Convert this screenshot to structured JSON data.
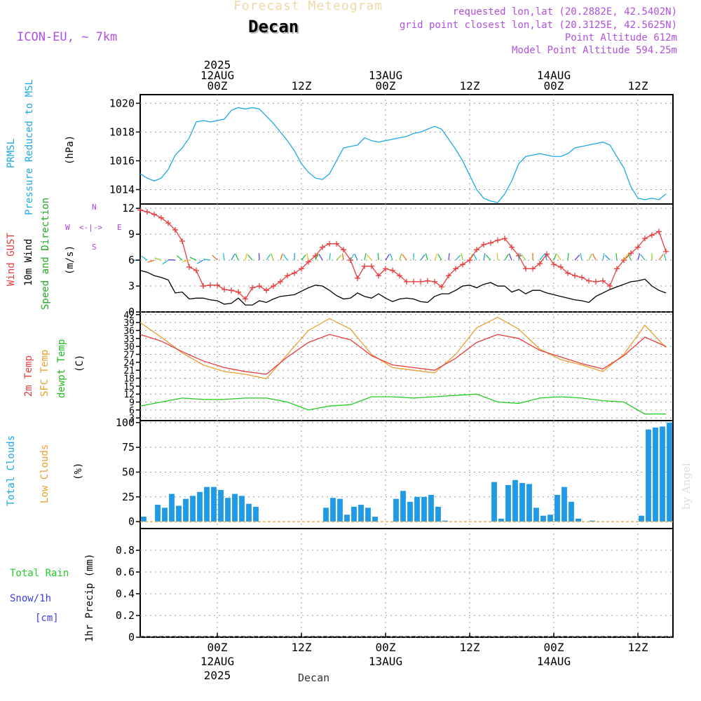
{
  "header": {
    "faded_title": "Forecast Meteogram",
    "location": "Decan",
    "model": "ICON-EU, ~ 7km",
    "requested": "requested lon,lat (20.2882E, 42.5402N)",
    "grid_point": "grid point closest lon,lat (20.3125E, 42.5625N)",
    "point_altitude": "Point Altitude 612m",
    "model_altitude": "Model Point Altitude 594.25m",
    "watermark": "by Angel",
    "footer_location": "Decan"
  },
  "colors": {
    "pressure": "#1ea8e8",
    "wind_gust": "#e83c3c",
    "wind": "#000000",
    "direction": "#22aa22",
    "temp_2m": "#e83c3c",
    "temp_sfc": "#e8a030",
    "dewpoint": "#22cc22",
    "total_clouds": "#1e9be8",
    "low_clouds": "#e8a030",
    "rain": "#22cc22",
    "snow": "#3c3ce8",
    "compass": "#b040e0"
  },
  "time_axis": {
    "ticks": [
      {
        "h": 0,
        "top": [
          "2025",
          "12AUG",
          "00Z"
        ],
        "bottom": [
          "00Z",
          "12AUG",
          "2025"
        ]
      },
      {
        "h": 12,
        "top": [
          "12Z"
        ],
        "bottom": [
          "12Z"
        ]
      },
      {
        "h": 24,
        "top": [
          "13AUG",
          "00Z"
        ],
        "bottom": [
          "00Z",
          "13AUG"
        ]
      },
      {
        "h": 36,
        "top": [
          "12Z"
        ],
        "bottom": [
          "12Z"
        ]
      },
      {
        "h": 48,
        "top": [
          "14AUG",
          "00Z"
        ],
        "bottom": [
          "00Z",
          "14AUG"
        ]
      },
      {
        "h": 60,
        "top": [
          "12Z"
        ],
        "bottom": [
          "12Z"
        ]
      }
    ],
    "start_hour": -11,
    "end_hour": 65
  },
  "panels": {
    "pressure": {
      "labels": [
        "PRMSL",
        "Pressure Reduced to MSL"
      ],
      "unit": "(hPa)",
      "ticks": [
        "1014",
        "1016",
        "1018",
        "1020"
      ]
    },
    "wind": {
      "labels": [
        "Wind GUST",
        "10m Wind",
        "Speed and Direction"
      ],
      "unit": "(m/s)",
      "ticks": [
        "0",
        "3",
        "6",
        "9",
        "12"
      ],
      "compass": {
        "n": "N",
        "s": "S",
        "w": "W",
        "e": "E"
      }
    },
    "temp": {
      "labels": [
        "2m Temp",
        "SFC Temp",
        "dewpt Temp"
      ],
      "unit": "(C)",
      "ticks": [
        "3",
        "6",
        "9",
        "12",
        "15",
        "18",
        "21",
        "24",
        "27",
        "30",
        "33",
        "36",
        "39",
        "42"
      ]
    },
    "clouds": {
      "labels": [
        "Total Clouds",
        "Low Clouds"
      ],
      "unit": "(%)",
      "ticks": [
        "0",
        "25",
        "50",
        "75",
        "100"
      ]
    },
    "precip": {
      "labels": [
        "Total  Rain",
        "Snow/1h",
        "[cm]"
      ],
      "unit": "1hr Precip (mm)",
      "ticks": [
        "0",
        "0.2",
        "0.4",
        "0.6",
        "0.8"
      ]
    }
  },
  "chart_data": [
    {
      "type": "line",
      "panel": "pressure",
      "ylim": [
        1013,
        1020.6
      ],
      "series": [
        {
          "name": "PRMSL",
          "x": [
            -11,
            -10,
            -9,
            -8,
            -7,
            -6,
            -5,
            -4,
            -3,
            -2,
            -1,
            0,
            1,
            2,
            3,
            4,
            5,
            6,
            7,
            8,
            9,
            10,
            11,
            12,
            13,
            14,
            15,
            16,
            17,
            18,
            19,
            20,
            21,
            22,
            23,
            24,
            25,
            26,
            27,
            28,
            29,
            30,
            31,
            32,
            33,
            34,
            35,
            36,
            37,
            38,
            39,
            40,
            41,
            42,
            43,
            44,
            45,
            46,
            47,
            48,
            49,
            50,
            51,
            52,
            53,
            54,
            55,
            56,
            57,
            58,
            59,
            60,
            61,
            62,
            63,
            64
          ],
          "values": [
            1015.1,
            1014.8,
            1014.6,
            1014.8,
            1015.4,
            1016.4,
            1016.9,
            1017.6,
            1018.7,
            1018.8,
            1018.7,
            1018.8,
            1018.9,
            1019.5,
            1019.7,
            1019.6,
            1019.7,
            1019.6,
            1019.1,
            1018.6,
            1018.0,
            1017.4,
            1016.7,
            1015.8,
            1015.2,
            1014.8,
            1014.7,
            1015.1,
            1016.0,
            1016.9,
            1017.0,
            1017.1,
            1017.6,
            1017.4,
            1017.3,
            1017.4,
            1017.5,
            1017.6,
            1017.7,
            1017.9,
            1018.0,
            1018.2,
            1018.4,
            1018.2,
            1017.5,
            1016.8,
            1016.0,
            1015.0,
            1014.0,
            1013.4,
            1013.2,
            1013.1,
            1013.7,
            1014.6,
            1015.8,
            1016.3,
            1016.4,
            1016.5,
            1016.4,
            1016.3,
            1016.3,
            1016.5,
            1016.9,
            1017.0,
            1017.1,
            1017.2,
            1017.3,
            1017.1,
            1016.3,
            1015.5,
            1014.2,
            1013.4,
            1013.3,
            1013.4,
            1013.3,
            1013.7
          ]
        }
      ]
    },
    {
      "type": "line",
      "panel": "wind",
      "ylim": [
        0,
        12.5
      ],
      "series": [
        {
          "name": "Wind GUST",
          "x": [
            -11,
            -10,
            -9,
            -8,
            -7,
            -6,
            -5,
            -4,
            -3,
            -2,
            -1,
            0,
            1,
            2,
            3,
            4,
            5,
            6,
            7,
            8,
            9,
            10,
            11,
            12,
            13,
            14,
            15,
            16,
            17,
            18,
            19,
            20,
            21,
            22,
            23,
            24,
            25,
            26,
            27,
            28,
            29,
            30,
            31,
            32,
            33,
            34,
            35,
            36,
            37,
            38,
            39,
            40,
            41,
            42,
            43,
            44,
            45,
            46,
            47,
            48,
            49,
            50,
            51,
            52,
            53,
            54,
            55,
            56,
            57,
            58,
            59,
            60,
            61,
            62,
            63,
            64
          ],
          "values": [
            11.8,
            11.6,
            11.3,
            10.9,
            10.3,
            9.5,
            8.2,
            5.2,
            4.8,
            3.0,
            3.1,
            3.1,
            2.6,
            2.5,
            2.3,
            1.5,
            2.8,
            3.0,
            2.5,
            3.0,
            3.5,
            4.2,
            4.5,
            5.0,
            5.8,
            6.5,
            7.5,
            7.9,
            7.9,
            7.2,
            6.0,
            3.9,
            5.3,
            5.3,
            4.2,
            5.0,
            4.8,
            4.2,
            3.5,
            3.5,
            3.5,
            3.6,
            3.5,
            2.9,
            4.2,
            5.0,
            5.5,
            6.0,
            7.2,
            7.8,
            8.0,
            8.3,
            8.5,
            7.5,
            6.5,
            5.0,
            5.0,
            5.6,
            6.7,
            5.5,
            5.2,
            4.5,
            4.2,
            4.0,
            3.6,
            3.5,
            3.6,
            3.0,
            5.0,
            6.0,
            6.8,
            7.5,
            8.5,
            8.9,
            9.3,
            7.0
          ]
        },
        {
          "name": "10m Wind",
          "x": [
            -11,
            -10,
            -9,
            -8,
            -7,
            -6,
            -5,
            -4,
            -3,
            -2,
            -1,
            0,
            1,
            2,
            3,
            4,
            5,
            6,
            7,
            8,
            9,
            10,
            11,
            12,
            13,
            14,
            15,
            16,
            17,
            18,
            19,
            20,
            21,
            22,
            23,
            24,
            25,
            26,
            27,
            28,
            29,
            30,
            31,
            32,
            33,
            34,
            35,
            36,
            37,
            38,
            39,
            40,
            41,
            42,
            43,
            44,
            45,
            46,
            47,
            48,
            49,
            50,
            51,
            52,
            53,
            54,
            55,
            56,
            57,
            58,
            59,
            60,
            61,
            62,
            63,
            64
          ],
          "values": [
            4.8,
            4.6,
            4.2,
            4.0,
            3.7,
            2.2,
            2.3,
            1.5,
            1.6,
            1.6,
            1.4,
            1.3,
            0.9,
            1.0,
            1.6,
            0.8,
            0.8,
            1.3,
            1.1,
            1.5,
            1.8,
            1.9,
            2.0,
            2.4,
            2.8,
            3.1,
            3.0,
            2.5,
            1.9,
            1.5,
            1.6,
            2.2,
            1.8,
            1.6,
            2.1,
            1.6,
            1.2,
            1.5,
            1.6,
            1.5,
            1.2,
            1.1,
            1.8,
            2.1,
            2.1,
            2.5,
            3.0,
            3.1,
            2.8,
            3.2,
            3.4,
            3.0,
            3.0,
            2.3,
            2.6,
            2.1,
            2.5,
            2.5,
            2.2,
            2.0,
            1.8,
            1.6,
            1.4,
            1.3,
            1.1,
            1.8,
            2.2,
            2.6,
            2.9,
            3.2,
            3.5,
            3.6,
            3.8,
            3.0,
            2.5,
            2.2
          ]
        }
      ]
    },
    {
      "type": "line",
      "panel": "temp",
      "ylim": [
        2,
        43
      ],
      "series": [
        {
          "name": "2m Temp",
          "x": [
            -11,
            -8,
            -5,
            -2,
            1,
            4,
            7,
            10,
            13,
            16,
            19,
            22,
            25,
            28,
            31,
            34,
            37,
            40,
            43,
            46,
            49,
            52,
            55,
            58,
            61,
            64
          ],
          "values": [
            34.5,
            32.0,
            28.0,
            24.5,
            22.0,
            20.5,
            19.5,
            26.0,
            31.5,
            34.5,
            32.5,
            26.5,
            23.0,
            22.0,
            21.0,
            25.5,
            31.5,
            34.5,
            33.0,
            28.5,
            26.0,
            23.5,
            21.5,
            26.5,
            33.5,
            30.0
          ]
        },
        {
          "name": "SFC Temp",
          "x": [
            -11,
            -8,
            -5,
            -2,
            1,
            4,
            7,
            10,
            13,
            16,
            19,
            22,
            25,
            28,
            31,
            34,
            37,
            40,
            43,
            46,
            49,
            52,
            55,
            58,
            61,
            64
          ],
          "values": [
            39.0,
            33.5,
            27.5,
            23.0,
            20.5,
            19.5,
            17.8,
            27.0,
            36.0,
            40.5,
            36.5,
            27.0,
            22.0,
            21.0,
            20.0,
            27.0,
            37.0,
            41.0,
            36.5,
            29.0,
            25.0,
            23.0,
            20.5,
            27.0,
            38.0,
            29.5
          ]
        },
        {
          "name": "dewpt Temp",
          "x": [
            -11,
            -8,
            -5,
            -2,
            1,
            4,
            7,
            10,
            13,
            16,
            19,
            22,
            25,
            28,
            31,
            34,
            37,
            40,
            43,
            46,
            49,
            52,
            55,
            58,
            61,
            64
          ],
          "values": [
            7.5,
            9.0,
            10.5,
            10.0,
            10.0,
            10.5,
            10.5,
            9.0,
            6.0,
            7.5,
            8.0,
            11.0,
            11.0,
            10.5,
            11.0,
            11.5,
            12.0,
            9.0,
            8.5,
            10.5,
            11.0,
            10.5,
            9.5,
            9.0,
            4.5,
            4.5
          ]
        }
      ]
    },
    {
      "type": "bar",
      "panel": "clouds",
      "ylim": [
        -7,
        102
      ],
      "series": [
        {
          "name": "Total Clouds",
          "x": [
            -11,
            -10,
            -9,
            -8,
            -7,
            -6,
            -5,
            -4,
            -3,
            -2,
            -1,
            0,
            1,
            2,
            3,
            4,
            5,
            6,
            7,
            8,
            9,
            10,
            11,
            12,
            13,
            14,
            15,
            16,
            17,
            18,
            19,
            20,
            21,
            22,
            23,
            24,
            25,
            26,
            27,
            28,
            29,
            30,
            31,
            32,
            33,
            34,
            35,
            36,
            37,
            38,
            39,
            40,
            41,
            42,
            43,
            44,
            45,
            46,
            47,
            48,
            49,
            50,
            51,
            52,
            53,
            54,
            55,
            56,
            57,
            58,
            59,
            60,
            61,
            62,
            63,
            64
          ],
          "values": [
            5,
            0,
            17,
            14,
            28,
            16,
            23,
            26,
            30,
            35,
            35,
            32,
            24,
            28,
            26,
            18,
            15,
            0,
            0,
            0,
            0,
            0,
            0,
            0,
            0,
            0,
            14,
            24,
            23,
            7,
            15,
            17,
            14,
            5,
            0,
            0,
            23,
            31,
            20,
            25,
            25,
            27,
            15,
            1,
            0,
            0,
            0,
            0,
            0,
            0,
            40,
            3,
            37,
            42,
            39,
            38,
            14,
            6,
            7,
            27,
            35,
            20,
            3,
            0,
            1,
            0,
            0,
            0,
            0,
            0,
            0,
            6,
            93,
            95,
            96,
            100
          ]
        },
        {
          "name": "Low Clouds",
          "x": [
            -11,
            0,
            12,
            24,
            36,
            48,
            60,
            64
          ],
          "values": [
            0,
            0,
            0,
            0,
            0,
            0,
            0,
            0
          ]
        }
      ]
    },
    {
      "type": "bar",
      "panel": "precip",
      "ylim": [
        0,
        1
      ],
      "series": [
        {
          "name": "Total  Rain",
          "x": [
            -11,
            0,
            12,
            24,
            36,
            48,
            60,
            64
          ],
          "values": [
            0,
            0,
            0,
            0,
            0,
            0,
            0,
            0
          ]
        }
      ]
    }
  ]
}
